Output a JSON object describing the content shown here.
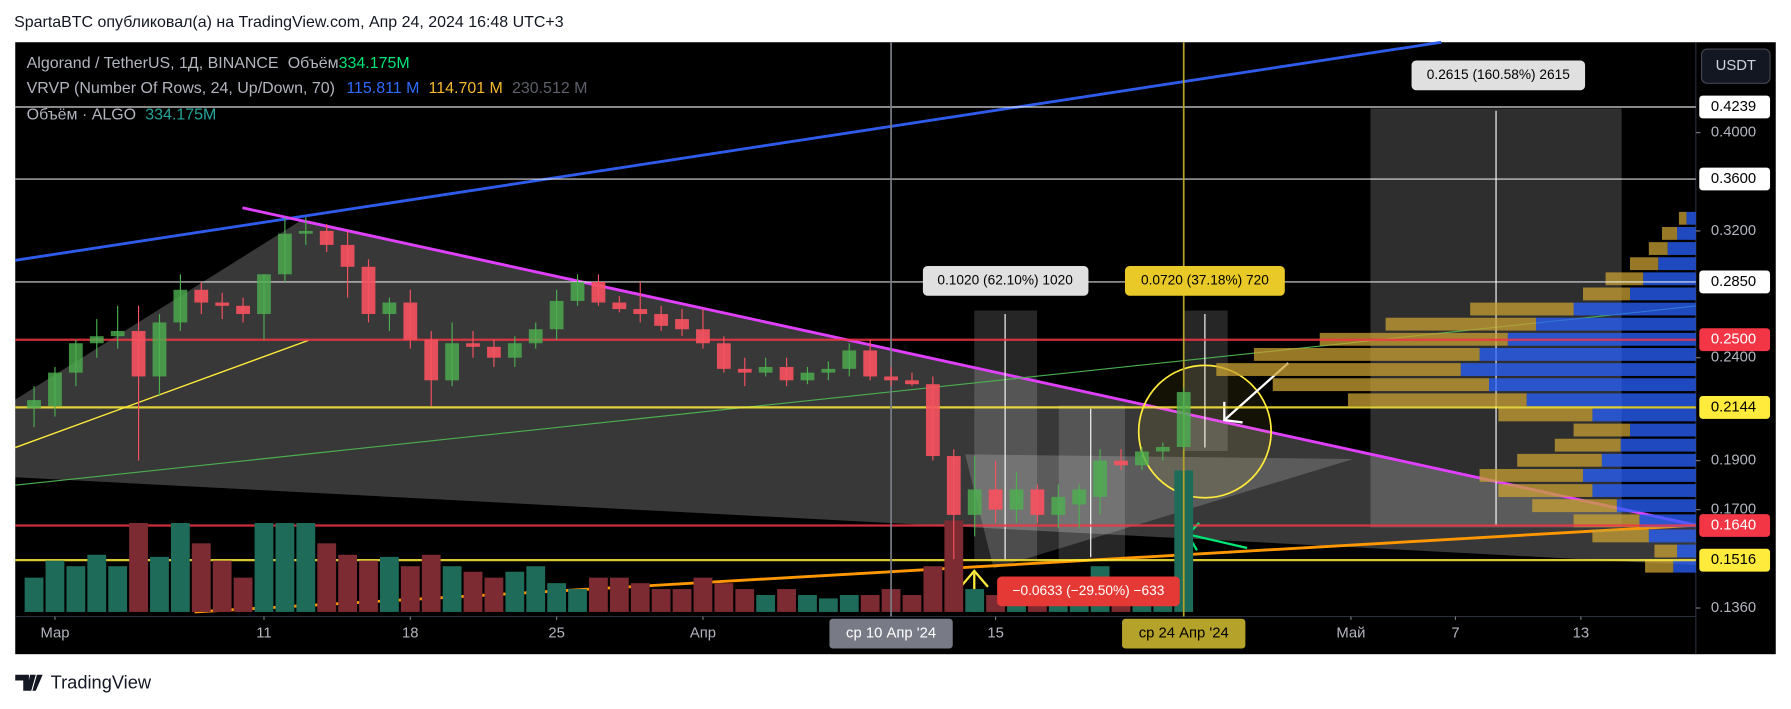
{
  "header": "SpartaBTC опубликовал(а) на TradingView.com, Апр 24, 2024 16:48 UTC+3",
  "footer": "TradingView",
  "chart_data": {
    "type": "candlestick",
    "legend": {
      "symbol": "Algorand / TetherUS, 1Д, BINANCE",
      "volume_label": "Объём",
      "volume_value": "334.175M",
      "vrvp": "VRVP (Number Of Rows, 24, Up/Down, 70)",
      "vrvp_up": "115.811 M",
      "vrvp_down": "114.701 M",
      "vrvp_total": "230.512 M",
      "volume_study": "Объём · ALGO",
      "volume_study_value": "334.175M"
    },
    "currency": "USDT",
    "log_scale": true,
    "xlim": [
      -1.9,
      78.5
    ],
    "ylim": [
      0.1334,
      0.491
    ],
    "xticks": [
      {
        "value": 0,
        "label": "Мар"
      },
      {
        "value": 10,
        "label": "11"
      },
      {
        "value": 17,
        "label": "18"
      },
      {
        "value": 24,
        "label": "25"
      },
      {
        "value": 31,
        "label": "Апр"
      },
      {
        "value": 45,
        "label": "15"
      },
      {
        "value": 62,
        "label": "Май"
      },
      {
        "value": 67,
        "label": "7"
      },
      {
        "value": 73,
        "label": "13"
      }
    ],
    "yticks": [
      {
        "value": 0.4,
        "label": "0.4000"
      },
      {
        "value": 0.32,
        "label": "0.3200"
      },
      {
        "value": 0.24,
        "label": "0.2400"
      },
      {
        "value": 0.19,
        "label": "0.1900"
      },
      {
        "value": 0.17,
        "label": "0.1700"
      },
      {
        "value": 0.136,
        "label": "0.1360"
      }
    ],
    "up_color": "#4caf50",
    "down_color": "#f7525f",
    "volume_up_color": "#1f6b5a",
    "volume_down_color": "#7b2b31",
    "x": [
      -1,
      0,
      1,
      2,
      3,
      4,
      5,
      6,
      7,
      8,
      9,
      10,
      11,
      12,
      13,
      14,
      15,
      16,
      17,
      18,
      19,
      20,
      21,
      22,
      23,
      24,
      25,
      26,
      27,
      28,
      29,
      30,
      31,
      32,
      33,
      34,
      35,
      36,
      37,
      38,
      39,
      40,
      41,
      42,
      43,
      44,
      45,
      46,
      47,
      48,
      49,
      50,
      51,
      52,
      53,
      54
    ],
    "open": [
      0.214,
      0.215,
      0.232,
      0.248,
      0.252,
      0.255,
      0.23,
      0.26,
      0.28,
      0.272,
      0.27,
      0.265,
      0.29,
      0.318,
      0.32,
      0.31,
      0.295,
      0.265,
      0.272,
      0.25,
      0.228,
      0.248,
      0.246,
      0.24,
      0.248,
      0.256,
      0.273,
      0.285,
      0.272,
      0.268,
      0.265,
      0.262,
      0.256,
      0.248,
      0.234,
      0.232,
      0.235,
      0.228,
      0.232,
      0.234,
      0.244,
      0.23,
      0.228,
      0.226,
      0.192,
      0.168,
      0.178,
      0.17,
      0.178,
      0.168,
      0.172,
      0.175,
      0.19,
      0.188,
      0.194,
      0.196
    ],
    "high": [
      0.225,
      0.235,
      0.25,
      0.262,
      0.27,
      0.27,
      0.265,
      0.29,
      0.285,
      0.278,
      0.275,
      0.29,
      0.33,
      0.33,
      0.325,
      0.32,
      0.3,
      0.275,
      0.28,
      0.255,
      0.26,
      0.255,
      0.25,
      0.252,
      0.26,
      0.28,
      0.29,
      0.29,
      0.276,
      0.285,
      0.27,
      0.268,
      0.268,
      0.252,
      0.24,
      0.24,
      0.24,
      0.235,
      0.238,
      0.248,
      0.25,
      0.235,
      0.232,
      0.23,
      0.195,
      0.192,
      0.19,
      0.185,
      0.18,
      0.18,
      0.18,
      0.195,
      0.195,
      0.196,
      0.198,
      0.224
    ],
    "low": [
      0.205,
      0.21,
      0.225,
      0.24,
      0.245,
      0.19,
      0.22,
      0.255,
      0.265,
      0.262,
      0.26,
      0.25,
      0.285,
      0.31,
      0.305,
      0.275,
      0.26,
      0.255,
      0.245,
      0.215,
      0.225,
      0.24,
      0.235,
      0.235,
      0.245,
      0.25,
      0.27,
      0.27,
      0.266,
      0.26,
      0.255,
      0.252,
      0.245,
      0.232,
      0.225,
      0.23,
      0.225,
      0.226,
      0.228,
      0.23,
      0.228,
      0.225,
      0.225,
      0.19,
      0.152,
      0.16,
      0.165,
      0.165,
      0.165,
      0.163,
      0.163,
      0.168,
      0.186,
      0.186,
      0.19,
      0.195
    ],
    "close": [
      0.218,
      0.232,
      0.248,
      0.252,
      0.255,
      0.23,
      0.26,
      0.28,
      0.272,
      0.27,
      0.265,
      0.29,
      0.318,
      0.32,
      0.31,
      0.295,
      0.265,
      0.272,
      0.25,
      0.228,
      0.248,
      0.246,
      0.24,
      0.248,
      0.256,
      0.273,
      0.285,
      0.272,
      0.268,
      0.265,
      0.258,
      0.256,
      0.248,
      0.234,
      0.232,
      0.235,
      0.228,
      0.232,
      0.234,
      0.244,
      0.23,
      0.228,
      0.226,
      0.192,
      0.168,
      0.178,
      0.17,
      0.178,
      0.168,
      0.175,
      0.178,
      0.19,
      0.188,
      0.194,
      0.196,
      0.222
    ],
    "volume": [
      81,
      121,
      108,
      135,
      108,
      210,
      130,
      210,
      162,
      121,
      81,
      210,
      210,
      210,
      162,
      135,
      121,
      130,
      108,
      135,
      108,
      95,
      81,
      95,
      108,
      68,
      54,
      81,
      81,
      68,
      54,
      54,
      81,
      68,
      54,
      40,
      54,
      40,
      32,
      40,
      40,
      54,
      40,
      108,
      216,
      54,
      40,
      32,
      40,
      49,
      54,
      108,
      40,
      54,
      68,
      334.175
    ],
    "volume_profile": {
      "range": [
        0.147,
        0.335
      ],
      "up_color": "#2962ff",
      "down_color": "#c9a033",
      "up": [
        1.2,
        1.0,
        2.5,
        3.0,
        4.2,
        5.5,
        6.0,
        5.0,
        4.0,
        3.5,
        5.5,
        9.0,
        11.0,
        12.5,
        11.5,
        10.0,
        8.5,
        6.5,
        3.5,
        2.8,
        2.0,
        1.5,
        1.0,
        0.5
      ],
      "down": [
        1.5,
        1.2,
        3.0,
        3.5,
        4.5,
        5.0,
        5.5,
        4.5,
        3.5,
        3.0,
        5.0,
        9.5,
        11.5,
        13.0,
        12.0,
        10.0,
        8.0,
        5.5,
        2.5,
        2.0,
        1.5,
        1.0,
        0.8,
        0.4
      ]
    },
    "levels": [
      {
        "value": 0.4239,
        "label": "0.4239",
        "color": "#ffffff",
        "label_color": "#000000"
      },
      {
        "value": 0.36,
        "label": "0.3600",
        "color": "#ffffff",
        "label_color": "#000000"
      },
      {
        "value": 0.285,
        "label": "0.2850",
        "color": "#ffffff",
        "label_color": "#000000"
      },
      {
        "value": 0.25,
        "label": "0.2500",
        "color": "#f23645",
        "label_color": "#ffffff"
      },
      {
        "value": 0.2144,
        "label": "0.2144",
        "color": "#ffeb3b",
        "label_color": "#000000"
      },
      {
        "value": 0.164,
        "label": "0.1640",
        "color": "#f23645",
        "label_color": "#ffffff"
      },
      {
        "value": 0.1516,
        "label": "0.1516",
        "color": "#ffeb3b",
        "label_color": "#000000"
      }
    ],
    "crosshairs": [
      {
        "x": 40,
        "label": "ср 10 Апр '24",
        "color": "#787b86",
        "label_color": "#ffffff"
      },
      {
        "x": 54,
        "label": "ср 24 Апр '24",
        "color": "#b5a22a",
        "label_color": "#000000"
      }
    ],
    "annotations": [
      "0.1020 (62.10%) 1020",
      "0.0720 (37.18%) 720",
      "0.2615 (160.58%) 2615",
      "−0.0633 (−29.50%) −633"
    ]
  }
}
